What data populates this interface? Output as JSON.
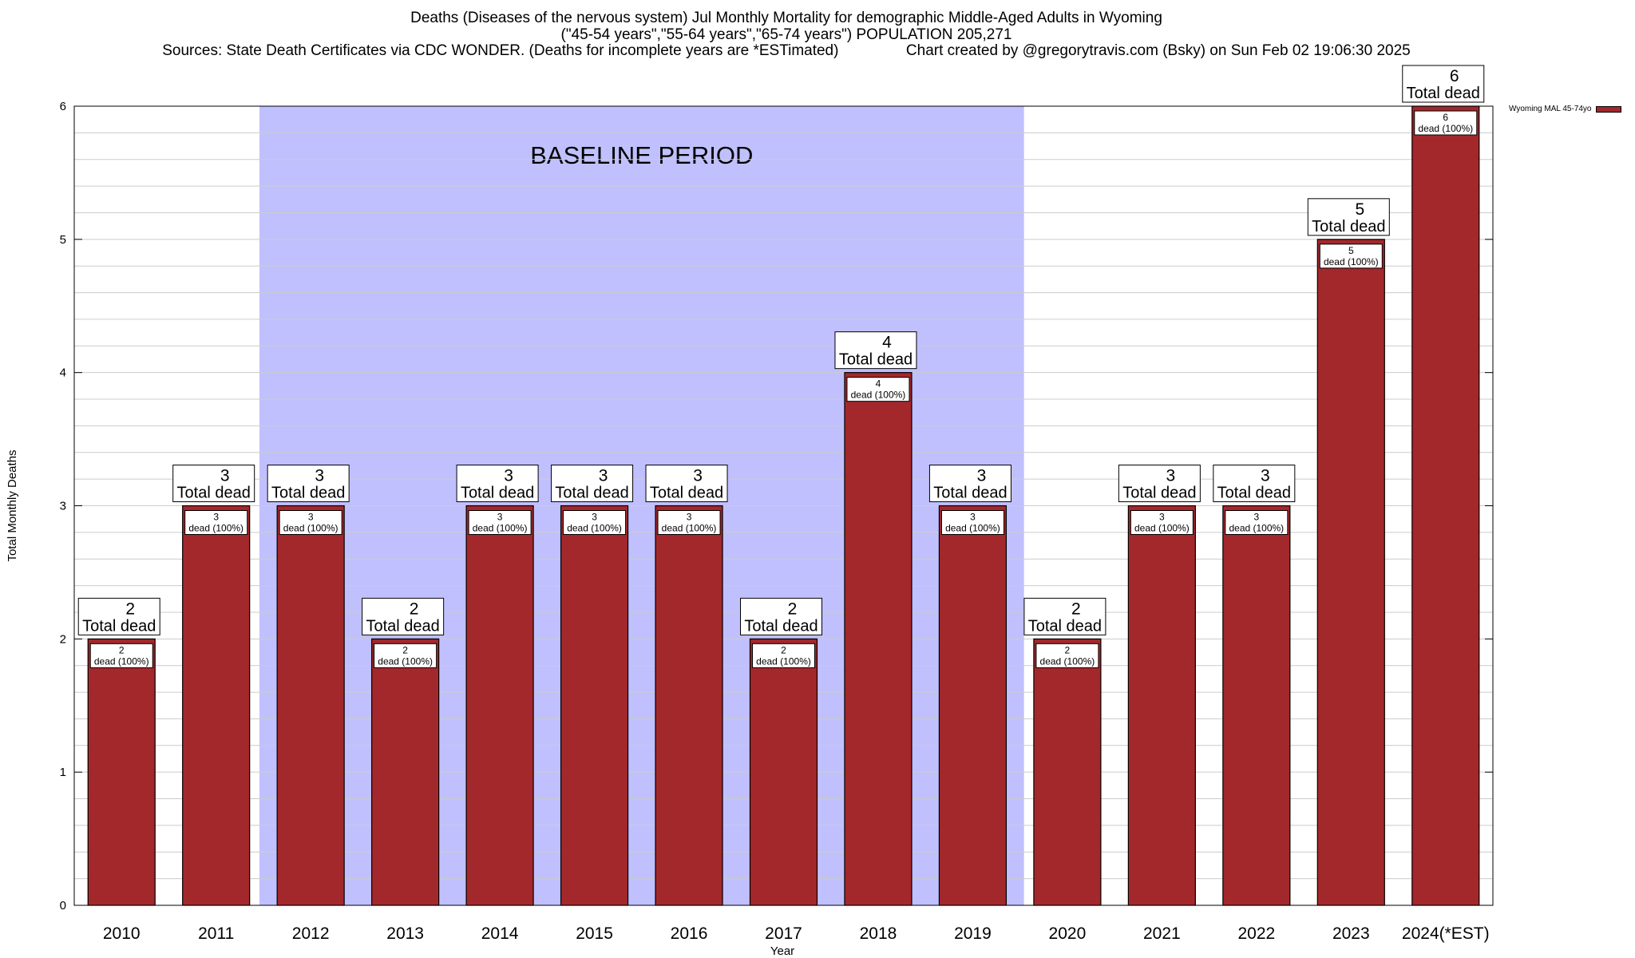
{
  "header": {
    "title_line1": "Deaths (Diseases of the nervous system) Jul Monthly Mortality for demographic Middle-Aged Adults in Wyoming",
    "title_line2": "(\"45-54 years\",\"55-64 years\",\"65-74 years\") POPULATION 205,271",
    "title_line3": "Sources: State Death Certificates via CDC WONDER. (Deaths for incomplete years are *ESTimated)                Chart created by @gregorytravis.com (Bsky) on Sun Feb 02 19:06:30 2025"
  },
  "legend": {
    "label": "Wyoming MAL 45-74yo"
  },
  "colors": {
    "bar": "#a3282b",
    "baseline": "#c0c0ff",
    "grid": "#cccccc"
  },
  "chart_data": {
    "type": "bar",
    "title": "Deaths (Diseases of the nervous system) Jul Monthly Mortality for demographic Middle-Aged Adults in Wyoming",
    "xlabel": "Year",
    "ylabel": "Total Monthly Deaths",
    "ylim": [
      0,
      6
    ],
    "yticks": [
      0,
      1,
      2,
      3,
      4,
      5,
      6
    ],
    "grid": true,
    "legend_position": "top-right",
    "categories": [
      "2010",
      "2011",
      "2012",
      "2013",
      "2014",
      "2015",
      "2016",
      "2017",
      "2018",
      "2019",
      "2020",
      "2021",
      "2022",
      "2023",
      "2024(*EST)"
    ],
    "series": [
      {
        "name": "Wyoming MAL 45-74yo",
        "values": [
          2,
          3,
          3,
          2,
          3,
          3,
          3,
          2,
          4,
          3,
          2,
          3,
          3,
          5,
          6
        ]
      }
    ],
    "total_label_text": "Total dead",
    "inner_label_text": "dead (100%)",
    "baseline": {
      "label": "BASELINE PERIOD",
      "from": "2012",
      "to": "2019"
    }
  }
}
